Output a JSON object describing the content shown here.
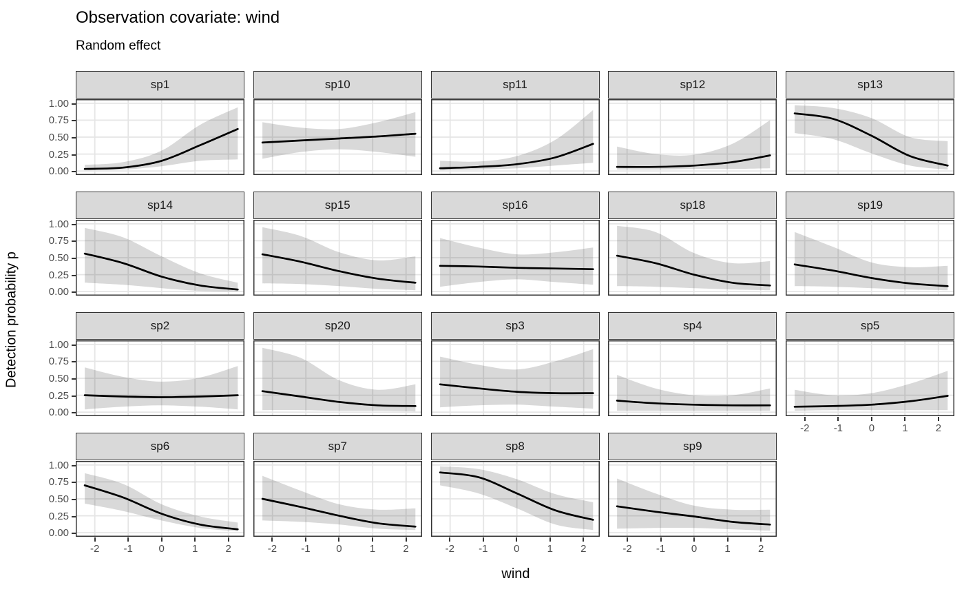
{
  "header": {
    "title": "Observation covariate: wind",
    "subtitle": "Random effect"
  },
  "chart_data": {
    "type": "line",
    "subtype": "faceted-smooth-with-ribbon",
    "title": "Observation covariate: wind",
    "subtitle": "Random effect",
    "xlabel": "wind",
    "ylabel": "Detection probability p",
    "legend": "none",
    "grid": "major",
    "xlim": [
      -2.57,
      2.48
    ],
    "ylim": [
      -0.06,
      1.06
    ],
    "x_ticks": [
      -2,
      -1,
      0,
      1,
      2
    ],
    "x_tick_labels": [
      "-2",
      "-1",
      "0",
      "1",
      "2"
    ],
    "y_ticks": [
      1,
      0.75,
      0.5,
      0.25,
      0
    ],
    "y_tick_labels": [
      "1.00",
      "0.75",
      "0.50",
      "0.25",
      "0.00"
    ],
    "x": [
      -2.3,
      -1.15,
      0,
      1.15,
      2.28
    ],
    "facets": [
      {
        "name": "sp1",
        "y": [
          0.03,
          0.05,
          0.15,
          0.38,
          0.62
        ],
        "lower": [
          0.01,
          0.02,
          0.07,
          0.15,
          0.17
        ],
        "upper": [
          0.09,
          0.13,
          0.3,
          0.68,
          0.94
        ]
      },
      {
        "name": "sp10",
        "y": [
          0.42,
          0.45,
          0.48,
          0.51,
          0.55
        ],
        "lower": [
          0.18,
          0.28,
          0.32,
          0.28,
          0.21
        ],
        "upper": [
          0.72,
          0.64,
          0.62,
          0.72,
          0.87
        ]
      },
      {
        "name": "sp11",
        "y": [
          0.04,
          0.06,
          0.1,
          0.2,
          0.4
        ],
        "lower": [
          0.01,
          0.02,
          0.04,
          0.08,
          0.12
        ],
        "upper": [
          0.15,
          0.14,
          0.22,
          0.46,
          0.9
        ]
      },
      {
        "name": "sp12",
        "y": [
          0.06,
          0.06,
          0.08,
          0.13,
          0.23
        ],
        "lower": [
          0.02,
          0.02,
          0.03,
          0.03,
          0.04
        ],
        "upper": [
          0.36,
          0.25,
          0.24,
          0.4,
          0.75
        ]
      },
      {
        "name": "sp13",
        "y": [
          0.85,
          0.77,
          0.52,
          0.22,
          0.08
        ],
        "lower": [
          0.56,
          0.47,
          0.26,
          0.08,
          0.02
        ],
        "upper": [
          0.97,
          0.93,
          0.78,
          0.5,
          0.44
        ]
      },
      {
        "name": "sp14",
        "y": [
          0.56,
          0.42,
          0.22,
          0.09,
          0.03
        ],
        "lower": [
          0.13,
          0.1,
          0.05,
          0.01,
          0.0
        ],
        "upper": [
          0.94,
          0.8,
          0.52,
          0.27,
          0.13
        ]
      },
      {
        "name": "sp15",
        "y": [
          0.55,
          0.44,
          0.3,
          0.19,
          0.13
        ],
        "lower": [
          0.12,
          0.11,
          0.08,
          0.04,
          0.02
        ],
        "upper": [
          0.95,
          0.82,
          0.58,
          0.46,
          0.52
        ]
      },
      {
        "name": "sp16",
        "y": [
          0.38,
          0.37,
          0.35,
          0.34,
          0.33
        ],
        "lower": [
          0.07,
          0.14,
          0.18,
          0.14,
          0.1
        ],
        "upper": [
          0.79,
          0.65,
          0.55,
          0.58,
          0.65
        ]
      },
      {
        "name": "sp18",
        "y": [
          0.53,
          0.42,
          0.25,
          0.13,
          0.09
        ],
        "lower": [
          0.08,
          0.07,
          0.05,
          0.03,
          0.02
        ],
        "upper": [
          0.97,
          0.88,
          0.57,
          0.42,
          0.45
        ]
      },
      {
        "name": "sp19",
        "y": [
          0.4,
          0.31,
          0.2,
          0.12,
          0.08
        ],
        "lower": [
          0.08,
          0.07,
          0.05,
          0.03,
          0.02
        ],
        "upper": [
          0.88,
          0.66,
          0.43,
          0.36,
          0.38
        ]
      },
      {
        "name": "sp2",
        "y": [
          0.25,
          0.23,
          0.22,
          0.23,
          0.25
        ],
        "lower": [
          0.04,
          0.08,
          0.1,
          0.08,
          0.04
        ],
        "upper": [
          0.66,
          0.52,
          0.45,
          0.51,
          0.68
        ]
      },
      {
        "name": "sp20",
        "y": [
          0.31,
          0.23,
          0.15,
          0.1,
          0.09
        ],
        "lower": [
          0.03,
          0.03,
          0.02,
          0.02,
          0.01
        ],
        "upper": [
          0.95,
          0.8,
          0.47,
          0.33,
          0.41
        ]
      },
      {
        "name": "sp3",
        "y": [
          0.41,
          0.35,
          0.3,
          0.28,
          0.28
        ],
        "lower": [
          0.07,
          0.1,
          0.11,
          0.08,
          0.05
        ],
        "upper": [
          0.82,
          0.7,
          0.63,
          0.75,
          0.93
        ]
      },
      {
        "name": "sp4",
        "y": [
          0.17,
          0.13,
          0.11,
          0.1,
          0.1
        ],
        "lower": [
          0.02,
          0.02,
          0.02,
          0.02,
          0.02
        ],
        "upper": [
          0.55,
          0.35,
          0.25,
          0.25,
          0.35
        ]
      },
      {
        "name": "sp5",
        "y": [
          0.08,
          0.09,
          0.11,
          0.16,
          0.24
        ],
        "lower": [
          0.02,
          0.03,
          0.03,
          0.03,
          0.03
        ],
        "upper": [
          0.33,
          0.25,
          0.28,
          0.42,
          0.61
        ]
      },
      {
        "name": "sp6",
        "y": [
          0.7,
          0.52,
          0.28,
          0.12,
          0.05
        ],
        "lower": [
          0.43,
          0.32,
          0.18,
          0.07,
          0.02
        ],
        "upper": [
          0.88,
          0.72,
          0.42,
          0.24,
          0.15
        ]
      },
      {
        "name": "sp7",
        "y": [
          0.5,
          0.38,
          0.25,
          0.14,
          0.09
        ],
        "lower": [
          0.18,
          0.16,
          0.12,
          0.06,
          0.04
        ],
        "upper": [
          0.84,
          0.62,
          0.42,
          0.34,
          0.36
        ]
      },
      {
        "name": "sp8",
        "y": [
          0.89,
          0.82,
          0.58,
          0.33,
          0.19
        ],
        "lower": [
          0.7,
          0.58,
          0.36,
          0.12,
          0.04
        ],
        "upper": [
          0.98,
          0.94,
          0.79,
          0.57,
          0.45
        ]
      },
      {
        "name": "sp9",
        "y": [
          0.39,
          0.31,
          0.24,
          0.16,
          0.12
        ],
        "lower": [
          0.06,
          0.07,
          0.07,
          0.05,
          0.03
        ],
        "upper": [
          0.8,
          0.58,
          0.4,
          0.34,
          0.34
        ]
      }
    ],
    "colors": {
      "curve": "#000000",
      "ribbon": "rgba(0,0,0,0.15)",
      "strip_fill": "#D9D9D9",
      "strip_border": "#333333",
      "panel_border": "#333333",
      "panel_bg": "#ffffff",
      "gridline": "#E5E5E5",
      "tick_text": "#4D4D4D",
      "tick_mark": "#333333"
    }
  }
}
